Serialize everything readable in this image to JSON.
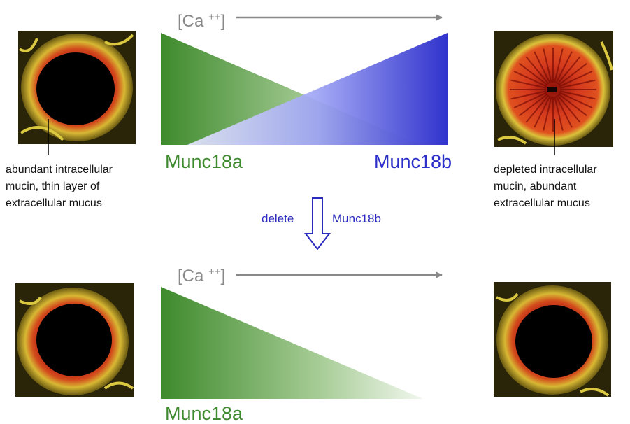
{
  "top_panel": {
    "ca_label": "[Ca++]",
    "left_protein": "Munc18a",
    "right_protein": "Munc18b",
    "left_caption": [
      "abundant intracellular",
      "mucin, thin layer of",
      "extracellular mucus"
    ],
    "right_caption": [
      "depleted intracellular",
      "mucin, abundant",
      "extracellular mucus"
    ]
  },
  "deletion": {
    "left_text": "delete",
    "right_text": "Munc18b"
  },
  "bottom_panel": {
    "ca_label": "[Ca++]",
    "protein": "Munc18a"
  },
  "colors": {
    "munc18a_green": "#3f8a2e",
    "munc18b_blue": "#2c2fc8",
    "arrow_grey": "#888888",
    "delete_blue": "#2b2bbf",
    "tissue_yellow": "#d9c840",
    "tissue_red": "#c0241a",
    "lumen_black": "#000000"
  },
  "images": [
    {
      "name": "airway-section-top-left",
      "state": "mucin-filled"
    },
    {
      "name": "airway-section-top-right",
      "state": "mucin-depleted"
    },
    {
      "name": "airway-section-bottom-left",
      "state": "mucin-filled"
    },
    {
      "name": "airway-section-bottom-right",
      "state": "mucin-filled"
    }
  ]
}
